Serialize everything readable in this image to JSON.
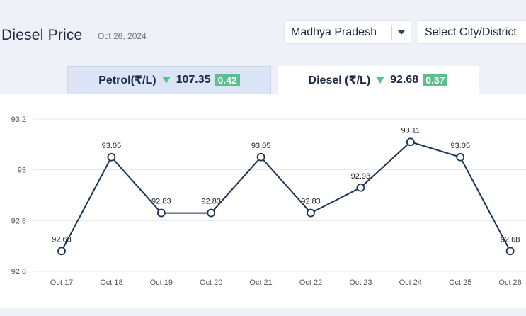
{
  "header": {
    "title": "Diesel Price",
    "date": "Oct 26, 2024",
    "state_select": "Madhya Pradesh",
    "city_select": "Select City/District"
  },
  "tabs": {
    "petrol": {
      "label": "Petrol(₹/L)",
      "price": "107.35",
      "change": "0.42",
      "direction": "down"
    },
    "diesel": {
      "label": "Diesel (₹/L)",
      "price": "92.68",
      "change": "0.37",
      "direction": "down",
      "active": true
    }
  },
  "icons": {
    "trend": "down-triangle-icon",
    "dropdown": "chevron-down-icon"
  },
  "colors": {
    "line": "#1e3354",
    "badge": "#5cbf8f",
    "active_tab": "#ffffff",
    "inactive_tab": "#dbe5f5"
  },
  "chart_data": {
    "type": "line",
    "categories": [
      "Oct 17",
      "Oct 18",
      "Oct 19",
      "Oct 20",
      "Oct 21",
      "Oct 22",
      "Oct 23",
      "Oct 24",
      "Oct 25",
      "Oct 26"
    ],
    "values": [
      92.68,
      93.05,
      92.83,
      92.83,
      93.05,
      92.83,
      92.93,
      93.11,
      93.05,
      92.68
    ],
    "ylim": [
      92.6,
      93.2
    ],
    "yticks": [
      92.6,
      92.8,
      93,
      93.2
    ],
    "grid": true,
    "title": "",
    "xlabel": "",
    "ylabel": ""
  }
}
